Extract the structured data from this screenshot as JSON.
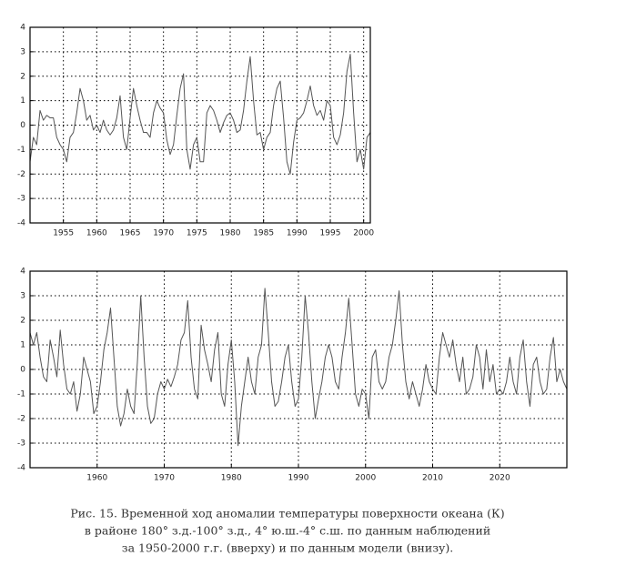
{
  "chart_data": [
    {
      "type": "line",
      "color": "#555555",
      "grid": true,
      "xlim": [
        1950,
        2001
      ],
      "ylim": [
        -4,
        4
      ],
      "xticks": [
        1955,
        1960,
        1965,
        1970,
        1975,
        1980,
        1985,
        1990,
        1995,
        2000
      ],
      "yticks": [
        -4,
        -3,
        -2,
        -1,
        0,
        1,
        2,
        3,
        4
      ],
      "x": [
        1950,
        1950.5,
        1951,
        1951.5,
        1952,
        1952.5,
        1953,
        1953.5,
        1954,
        1954.5,
        1955,
        1955.5,
        1956,
        1956.5,
        1957,
        1957.5,
        1958,
        1958.5,
        1959,
        1959.5,
        1960,
        1960.5,
        1961,
        1961.5,
        1962,
        1962.5,
        1963,
        1963.5,
        1964,
        1964.5,
        1965,
        1965.5,
        1966,
        1966.5,
        1967,
        1967.5,
        1968,
        1968.5,
        1969,
        1969.5,
        1970,
        1970.5,
        1971,
        1971.5,
        1972,
        1972.5,
        1973,
        1973.5,
        1974,
        1974.5,
        1975,
        1975.5,
        1976,
        1976.5,
        1977,
        1977.5,
        1978,
        1978.5,
        1979,
        1979.5,
        1980,
        1980.5,
        1981,
        1981.5,
        1982,
        1982.5,
        1983,
        1983.5,
        1984,
        1984.5,
        1985,
        1985.5,
        1986,
        1986.5,
        1987,
        1987.5,
        1988,
        1988.5,
        1989,
        1989.5,
        1990,
        1990.5,
        1991,
        1991.5,
        1992,
        1992.5,
        1993,
        1993.5,
        1994,
        1994.5,
        1995,
        1995.5,
        1996,
        1996.5,
        1997,
        1997.5,
        1998,
        1998.5,
        1999,
        1999.5,
        2000,
        2000.5,
        2001
      ],
      "values": [
        -1.5,
        -0.5,
        -0.8,
        0.6,
        0.2,
        0.4,
        0.3,
        0.3,
        -0.5,
        -0.8,
        -1.0,
        -1.5,
        -0.5,
        -0.3,
        0.5,
        1.5,
        1.0,
        0.2,
        0.4,
        -0.2,
        0,
        -0.3,
        0.2,
        -0.2,
        -0.4,
        -0.2,
        0.3,
        1.2,
        -0.5,
        -1.0,
        0.3,
        1.5,
        0.8,
        0.2,
        -0.3,
        -0.3,
        -0.5,
        0.5,
        1.0,
        0.7,
        0.5,
        -0.6,
        -1.2,
        -0.8,
        0.4,
        1.5,
        2.1,
        -1.0,
        -1.8,
        -0.8,
        -0.5,
        -1.5,
        -1.5,
        0.5,
        0.8,
        0.6,
        0.2,
        -0.3,
        0.1,
        0.4,
        0.5,
        0.2,
        -0.3,
        -0.2,
        0.6,
        1.8,
        2.8,
        1.0,
        -0.4,
        -0.3,
        -1.0,
        -0.5,
        -0.3,
        0.8,
        1.5,
        1.8,
        0.3,
        -1.5,
        -2.0,
        -0.7,
        0.2,
        0.3,
        0.5,
        1.0,
        1.6,
        0.8,
        0.4,
        0.6,
        0.2,
        1.0,
        0.8,
        -0.5,
        -0.8,
        -0.4,
        0.5,
        2.2,
        2.9,
        0.5,
        -1.5,
        -1.0,
        -1.8,
        -0.5,
        -0.3
      ]
    },
    {
      "type": "line",
      "color": "#555555",
      "grid": true,
      "xlim": [
        1950,
        2030
      ],
      "ylim": [
        -4,
        4
      ],
      "xticks": [
        1960,
        1970,
        1980,
        1990,
        2000,
        2010,
        2020
      ],
      "yticks": [
        -4,
        -3,
        -2,
        -1,
        0,
        1,
        2,
        3,
        4
      ],
      "x": [
        1950,
        1950.5,
        1951,
        1951.5,
        1952,
        1952.5,
        1953,
        1953.5,
        1954,
        1954.5,
        1955,
        1955.5,
        1956,
        1956.5,
        1957,
        1957.5,
        1958,
        1958.5,
        1959,
        1959.5,
        1960,
        1960.5,
        1961,
        1961.5,
        1962,
        1962.5,
        1963,
        1963.5,
        1964,
        1964.5,
        1965,
        1965.5,
        1966,
        1966.5,
        1967,
        1967.5,
        1968,
        1968.5,
        1969,
        1969.5,
        1970,
        1970.5,
        1971,
        1971.5,
        1972,
        1972.5,
        1973,
        1973.5,
        1974,
        1974.5,
        1975,
        1975.5,
        1976,
        1976.5,
        1977,
        1977.5,
        1978,
        1978.5,
        1979,
        1979.5,
        1980,
        1980.5,
        1981,
        1981.5,
        1982,
        1982.5,
        1983,
        1983.5,
        1984,
        1984.5,
        1985,
        1985.5,
        1986,
        1986.5,
        1987,
        1987.5,
        1988,
        1988.5,
        1989,
        1989.5,
        1990,
        1990.5,
        1991,
        1991.5,
        1992,
        1992.5,
        1993,
        1993.5,
        1994,
        1994.5,
        1995,
        1995.5,
        1996,
        1996.5,
        1997,
        1997.5,
        1998,
        1998.5,
        1999,
        1999.5,
        2000,
        2000.5,
        2001,
        2001.5,
        2002,
        2002.5,
        2003,
        2003.5,
        2004,
        2004.5,
        2005,
        2005.5,
        2006,
        2006.5,
        2007,
        2007.5,
        2008,
        2008.5,
        2009,
        2009.5,
        2010,
        2010.5,
        2011,
        2011.5,
        2012,
        2012.5,
        2013,
        2013.5,
        2014,
        2014.5,
        2015,
        2015.5,
        2016,
        2016.5,
        2017,
        2017.5,
        2018,
        2018.5,
        2019,
        2019.5,
        2020,
        2020.5,
        2021,
        2021.5,
        2022,
        2022.5,
        2023,
        2023.5,
        2024,
        2024.5,
        2025,
        2025.5,
        2026,
        2026.5,
        2027,
        2027.5,
        2028,
        2028.5,
        2029,
        2029.5,
        2030
      ],
      "values": [
        1.5,
        1.0,
        1.5,
        0.5,
        -0.3,
        -0.5,
        1.2,
        0.5,
        -0.3,
        1.6,
        0.2,
        -0.8,
        -1.0,
        -0.5,
        -1.7,
        -1.0,
        0.5,
        0.0,
        -0.5,
        -1.8,
        -1.5,
        -0.5,
        0.8,
        1.5,
        2.5,
        0.5,
        -1.5,
        -2.3,
        -1.8,
        -0.8,
        -1.5,
        -1.8,
        0.3,
        3.0,
        0.5,
        -1.5,
        -2.2,
        -2.0,
        -1.0,
        -0.5,
        -0.8,
        -0.4,
        -0.7,
        -0.3,
        0.2,
        1.2,
        1.5,
        2.8,
        0.5,
        -0.8,
        -1.2,
        1.8,
        0.8,
        0.2,
        -0.5,
        0.8,
        1.5,
        -1.0,
        -1.5,
        0.2,
        1.2,
        -0.5,
        -3.1,
        -1.5,
        -0.5,
        0.5,
        -0.5,
        -1.0,
        0.5,
        1.0,
        3.3,
        1.5,
        -0.5,
        -1.5,
        -1.3,
        -0.5,
        0.5,
        1.0,
        -0.5,
        -1.5,
        -1.2,
        0.5,
        3.0,
        1.5,
        -0.5,
        -2.0,
        -1.2,
        -0.5,
        0.5,
        1.0,
        0.5,
        -0.5,
        -0.8,
        0.5,
        1.5,
        2.9,
        1.0,
        -1.0,
        -1.5,
        -0.8,
        -1.0,
        -2.0,
        0.5,
        0.8,
        -0.5,
        -0.8,
        -0.5,
        0.5,
        1.0,
        2.0,
        3.2,
        1.0,
        -0.5,
        -1.2,
        -0.5,
        -1.0,
        -1.5,
        -0.8,
        0.2,
        -0.5,
        -0.8,
        -1.0,
        0.5,
        1.5,
        1.0,
        0.5,
        1.2,
        0.2,
        -0.5,
        0.5,
        -1.0,
        -0.8,
        -0.3,
        1.0,
        0.5,
        -0.8,
        0.8,
        -0.5,
        0.2,
        -1.0,
        -0.8,
        -1.0,
        -0.5,
        0.5,
        -0.5,
        -1.0,
        0.5,
        1.2,
        -0.5,
        -1.5,
        0.2,
        0.5,
        -0.5,
        -1.0,
        -0.8,
        0.5,
        1.3,
        -0.5,
        0.0,
        -0.5,
        -0.8
      ]
    }
  ],
  "caption": [
    "Рис. 15. Временной ход аномалии температуры поверхности океана (К)",
    "в районе 180° з.д.-100° з.д., 4° ю.ш.-4° с.ш. по данным наблюдений",
    "за 1950-2000 г.г. (вверху) и по данным модели (внизу)."
  ]
}
